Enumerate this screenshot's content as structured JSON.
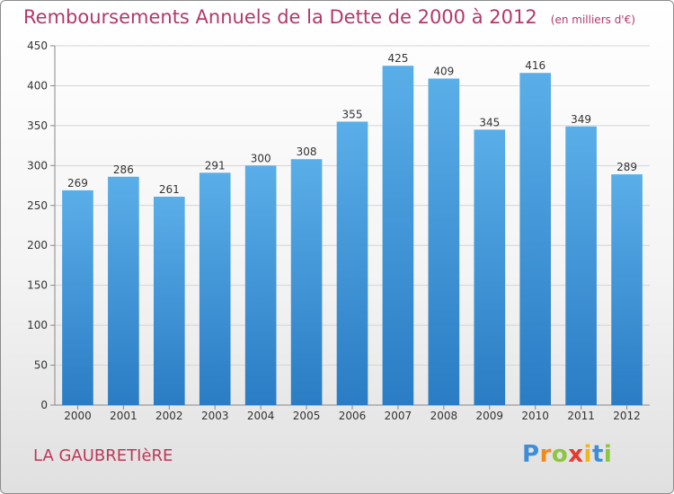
{
  "header": {
    "title": "Remboursements Annuels de la Dette de 2000 à 2012",
    "unit": "(en milliers d'€)"
  },
  "footer": {
    "commune": "LA GAUBRETIèRE",
    "logo_letters": [
      {
        "ch": "P",
        "color": "#3d8ed8"
      },
      {
        "ch": "r",
        "color": "#f08a1c"
      },
      {
        "ch": "o",
        "color": "#8cc63e"
      },
      {
        "ch": "x",
        "color": "#e63a2c"
      },
      {
        "ch": "i",
        "color": "#f2b418"
      },
      {
        "ch": "t",
        "color": "#3d8ed8"
      },
      {
        "ch": "i",
        "color": "#8cc63e"
      }
    ]
  },
  "colors": {
    "bar_top": "#5aaee8",
    "bar_bottom": "#2a7cc4",
    "title": "#b4386a"
  },
  "chart_data": {
    "type": "bar",
    "title": "Remboursements Annuels de la Dette de 2000 à 2012",
    "subtitle": "(en milliers d'€)",
    "xlabel": "",
    "ylabel": "",
    "categories": [
      "2000",
      "2001",
      "2002",
      "2003",
      "2004",
      "2005",
      "2006",
      "2007",
      "2008",
      "2009",
      "2010",
      "2011",
      "2012"
    ],
    "values": [
      269,
      286,
      261,
      291,
      300,
      308,
      355,
      425,
      409,
      345,
      416,
      349,
      289
    ],
    "ylim": [
      0,
      450
    ],
    "yticks": [
      0,
      50,
      100,
      150,
      200,
      250,
      300,
      350,
      400,
      450
    ],
    "grid": true,
    "data_labels": true
  }
}
